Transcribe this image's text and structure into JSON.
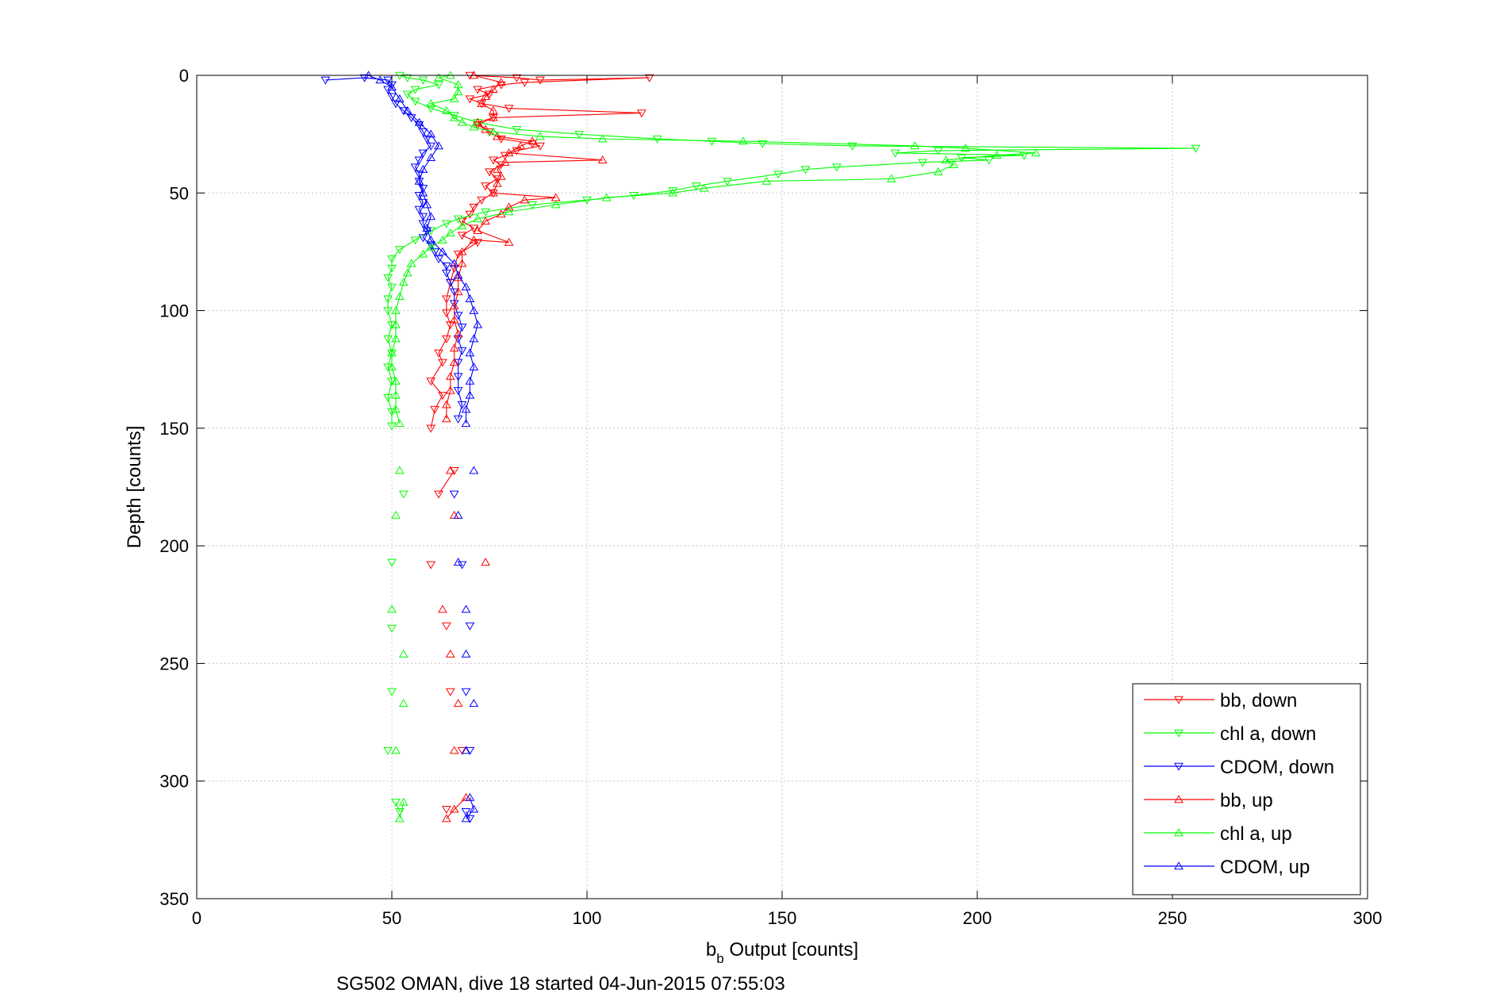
{
  "chart_data": {
    "type": "line",
    "xlabel_main": "b",
    "xlabel_sub": "b",
    "xlabel_rest": " Output [counts]",
    "ylabel": "Depth [counts]",
    "caption": "SG502 OMAN, dive 18 started 04-Jun-2015 07:55:03",
    "xlim": [
      0,
      300
    ],
    "ylim": [
      0,
      350
    ],
    "y_reversed": true,
    "grid": true,
    "legend_position": "bottom-right",
    "x_ticks": [
      "0",
      "50",
      "100",
      "150",
      "200",
      "250",
      "300"
    ],
    "y_ticks": [
      "0",
      "50",
      "100",
      "150",
      "200",
      "250",
      "300",
      "350"
    ],
    "series": [
      {
        "name": "bb, down",
        "color": "#ff0000",
        "marker": "triangle-down",
        "points": [
          [
            70,
            0
          ],
          [
            82,
            1
          ],
          [
            88,
            2
          ],
          [
            116,
            1
          ],
          [
            84,
            3
          ],
          [
            78,
            4
          ],
          [
            72,
            6
          ],
          [
            75,
            8
          ],
          [
            70,
            10
          ],
          [
            73,
            12
          ],
          [
            80,
            14
          ],
          [
            114,
            16
          ],
          [
            76,
            18
          ],
          [
            72,
            21
          ],
          [
            75,
            24
          ],
          [
            78,
            27
          ],
          [
            86,
            29
          ],
          [
            88,
            30
          ],
          [
            82,
            32
          ],
          [
            79,
            34
          ],
          [
            76,
            36
          ],
          [
            78,
            38
          ],
          [
            75,
            41
          ],
          [
            77,
            44
          ],
          [
            74,
            47
          ],
          [
            76,
            50
          ],
          [
            73,
            53
          ],
          [
            71,
            56
          ],
          [
            70,
            59
          ],
          [
            68,
            62
          ],
          [
            71,
            65
          ],
          [
            68,
            68
          ],
          [
            72,
            71
          ],
          [
            67,
            76
          ],
          [
            66,
            82
          ],
          [
            65,
            88
          ],
          [
            64,
            95
          ],
          [
            64,
            101
          ],
          [
            65,
            106
          ],
          [
            64,
            112
          ],
          [
            62,
            118
          ],
          [
            63,
            122
          ],
          [
            60,
            130
          ],
          [
            63,
            136
          ],
          [
            61,
            142
          ],
          [
            60,
            150
          ],
          [
            66,
            168
          ],
          [
            62,
            178
          ],
          [
            60,
            208
          ],
          [
            64,
            234
          ],
          [
            65,
            262
          ],
          [
            68,
            287
          ],
          [
            64,
            312
          ]
        ]
      },
      {
        "name": "chl a, down",
        "color": "#00ff00",
        "marker": "triangle-down",
        "points": [
          [
            52,
            0
          ],
          [
            54,
            1
          ],
          [
            58,
            2
          ],
          [
            62,
            4
          ],
          [
            56,
            6
          ],
          [
            54,
            8
          ],
          [
            56,
            11
          ],
          [
            60,
            14
          ],
          [
            66,
            17
          ],
          [
            72,
            20
          ],
          [
            82,
            23
          ],
          [
            98,
            25
          ],
          [
            118,
            27
          ],
          [
            132,
            28
          ],
          [
            145,
            29
          ],
          [
            168,
            30
          ],
          [
            256,
            31
          ],
          [
            190,
            32
          ],
          [
            179,
            33
          ],
          [
            212,
            34
          ],
          [
            196,
            35
          ],
          [
            203,
            36
          ],
          [
            186,
            37
          ],
          [
            164,
            39
          ],
          [
            156,
            40
          ],
          [
            149,
            42
          ],
          [
            136,
            45
          ],
          [
            128,
            47
          ],
          [
            122,
            49
          ],
          [
            112,
            51
          ],
          [
            100,
            53
          ],
          [
            86,
            55
          ],
          [
            74,
            58
          ],
          [
            67,
            61
          ],
          [
            64,
            63
          ],
          [
            60,
            66
          ],
          [
            56,
            70
          ],
          [
            52,
            74
          ],
          [
            50,
            78
          ],
          [
            50,
            82
          ],
          [
            49,
            86
          ],
          [
            50,
            90
          ],
          [
            49,
            95
          ],
          [
            49,
            100
          ],
          [
            50,
            106
          ],
          [
            49,
            112
          ],
          [
            50,
            118
          ],
          [
            49,
            124
          ],
          [
            50,
            130
          ],
          [
            49,
            137
          ],
          [
            50,
            143
          ],
          [
            50,
            149
          ],
          [
            53,
            178
          ],
          [
            50,
            207
          ],
          [
            50,
            235
          ],
          [
            50,
            262
          ],
          [
            49,
            287
          ],
          [
            51,
            309
          ],
          [
            52,
            313
          ]
        ]
      },
      {
        "name": "CDOM, down",
        "color": "#0000ff",
        "marker": "triangle-down",
        "points": [
          [
            33,
            2
          ],
          [
            43,
            1
          ],
          [
            49,
            2
          ],
          [
            50,
            4
          ],
          [
            49,
            6
          ],
          [
            50,
            9
          ],
          [
            51,
            12
          ],
          [
            53,
            15
          ],
          [
            55,
            18
          ],
          [
            57,
            21
          ],
          [
            58,
            24
          ],
          [
            59,
            27
          ],
          [
            60,
            30
          ],
          [
            58,
            33
          ],
          [
            57,
            36
          ],
          [
            56,
            39
          ],
          [
            57,
            42
          ],
          [
            57,
            45
          ],
          [
            58,
            48
          ],
          [
            57,
            51
          ],
          [
            58,
            54
          ],
          [
            57,
            57
          ],
          [
            58,
            60
          ],
          [
            58,
            63
          ],
          [
            59,
            66
          ],
          [
            58,
            69
          ],
          [
            60,
            72
          ],
          [
            61,
            75
          ],
          [
            62,
            78
          ],
          [
            64,
            81
          ],
          [
            64,
            84
          ],
          [
            65,
            88
          ],
          [
            66,
            92
          ],
          [
            66,
            97
          ],
          [
            67,
            102
          ],
          [
            68,
            107
          ],
          [
            67,
            112
          ],
          [
            68,
            117
          ],
          [
            67,
            122
          ],
          [
            67,
            128
          ],
          [
            67,
            134
          ],
          [
            68,
            140
          ],
          [
            67,
            146
          ],
          [
            66,
            178
          ],
          [
            68,
            208
          ],
          [
            70,
            234
          ],
          [
            69,
            262
          ],
          [
            70,
            287
          ],
          [
            69,
            313
          ],
          [
            70,
            316
          ]
        ]
      },
      {
        "name": "bb, up",
        "color": "#ff0000",
        "marker": "triangle-up",
        "points": [
          [
            64,
            316
          ],
          [
            66,
            312
          ],
          [
            69,
            307
          ],
          [
            66,
            287
          ],
          [
            67,
            267
          ],
          [
            65,
            246
          ],
          [
            63,
            227
          ],
          [
            74,
            207
          ],
          [
            66,
            187
          ],
          [
            65,
            168
          ],
          [
            64,
            146
          ],
          [
            64,
            140
          ],
          [
            65,
            134
          ],
          [
            65,
            128
          ],
          [
            66,
            122
          ],
          [
            66,
            116
          ],
          [
            67,
            110
          ],
          [
            66,
            104
          ],
          [
            66,
            98
          ],
          [
            67,
            92
          ],
          [
            67,
            86
          ],
          [
            68,
            80
          ],
          [
            68,
            75
          ],
          [
            71,
            70
          ],
          [
            80,
            71
          ],
          [
            72,
            66
          ],
          [
            74,
            62
          ],
          [
            78,
            59
          ],
          [
            80,
            56
          ],
          [
            84,
            53
          ],
          [
            92,
            52
          ],
          [
            76,
            50
          ],
          [
            77,
            46
          ],
          [
            78,
            43
          ],
          [
            77,
            40
          ],
          [
            79,
            37
          ],
          [
            104,
            36
          ],
          [
            80,
            33
          ],
          [
            83,
            30
          ],
          [
            86,
            28
          ],
          [
            77,
            26
          ],
          [
            74,
            23
          ],
          [
            72,
            20
          ],
          [
            76,
            18
          ],
          [
            76,
            15
          ],
          [
            73,
            12
          ],
          [
            74,
            9
          ],
          [
            76,
            6
          ],
          [
            78,
            3
          ],
          [
            71,
            0
          ]
        ]
      },
      {
        "name": "chl a, up",
        "color": "#00ff00",
        "marker": "triangle-up",
        "points": [
          [
            52,
            316
          ],
          [
            53,
            309
          ],
          [
            51,
            287
          ],
          [
            53,
            267
          ],
          [
            53,
            246
          ],
          [
            50,
            227
          ],
          [
            51,
            187
          ],
          [
            52,
            168
          ],
          [
            52,
            148
          ],
          [
            51,
            142
          ],
          [
            51,
            136
          ],
          [
            51,
            130
          ],
          [
            50,
            124
          ],
          [
            50,
            118
          ],
          [
            51,
            112
          ],
          [
            51,
            106
          ],
          [
            51,
            100
          ],
          [
            52,
            94
          ],
          [
            53,
            88
          ],
          [
            54,
            84
          ],
          [
            55,
            80
          ],
          [
            58,
            76
          ],
          [
            60,
            73
          ],
          [
            63,
            70
          ],
          [
            65,
            67
          ],
          [
            68,
            64
          ],
          [
            72,
            61
          ],
          [
            80,
            58
          ],
          [
            92,
            55
          ],
          [
            105,
            52
          ],
          [
            122,
            50
          ],
          [
            130,
            48
          ],
          [
            146,
            45
          ],
          [
            178,
            44
          ],
          [
            190,
            41
          ],
          [
            194,
            38
          ],
          [
            192,
            36
          ],
          [
            205,
            34
          ],
          [
            215,
            33
          ],
          [
            197,
            31
          ],
          [
            184,
            30
          ],
          [
            140,
            28
          ],
          [
            104,
            27
          ],
          [
            88,
            26
          ],
          [
            76,
            24
          ],
          [
            71,
            22
          ],
          [
            68,
            20
          ],
          [
            66,
            18
          ],
          [
            64,
            15
          ],
          [
            60,
            12
          ],
          [
            66,
            10
          ],
          [
            67,
            7
          ],
          [
            67,
            4
          ],
          [
            62,
            1
          ],
          [
            65,
            0
          ]
        ]
      },
      {
        "name": "CDOM, up",
        "color": "#0000ff",
        "marker": "triangle-up",
        "points": [
          [
            69,
            316
          ],
          [
            71,
            312
          ],
          [
            70,
            307
          ],
          [
            69,
            287
          ],
          [
            71,
            267
          ],
          [
            69,
            246
          ],
          [
            69,
            227
          ],
          [
            67,
            207
          ],
          [
            67,
            187
          ],
          [
            71,
            168
          ],
          [
            69,
            148
          ],
          [
            69,
            142
          ],
          [
            70,
            136
          ],
          [
            70,
            130
          ],
          [
            71,
            124
          ],
          [
            70,
            118
          ],
          [
            71,
            112
          ],
          [
            72,
            106
          ],
          [
            71,
            100
          ],
          [
            70,
            95
          ],
          [
            69,
            90
          ],
          [
            67,
            85
          ],
          [
            66,
            80
          ],
          [
            63,
            75
          ],
          [
            60,
            70
          ],
          [
            59,
            65
          ],
          [
            60,
            60
          ],
          [
            59,
            55
          ],
          [
            58,
            50
          ],
          [
            57,
            45
          ],
          [
            58,
            40
          ],
          [
            60,
            35
          ],
          [
            62,
            30
          ],
          [
            60,
            25
          ],
          [
            57,
            20
          ],
          [
            54,
            15
          ],
          [
            52,
            10
          ],
          [
            50,
            5
          ],
          [
            47,
            2
          ],
          [
            44,
            0
          ]
        ]
      }
    ]
  }
}
